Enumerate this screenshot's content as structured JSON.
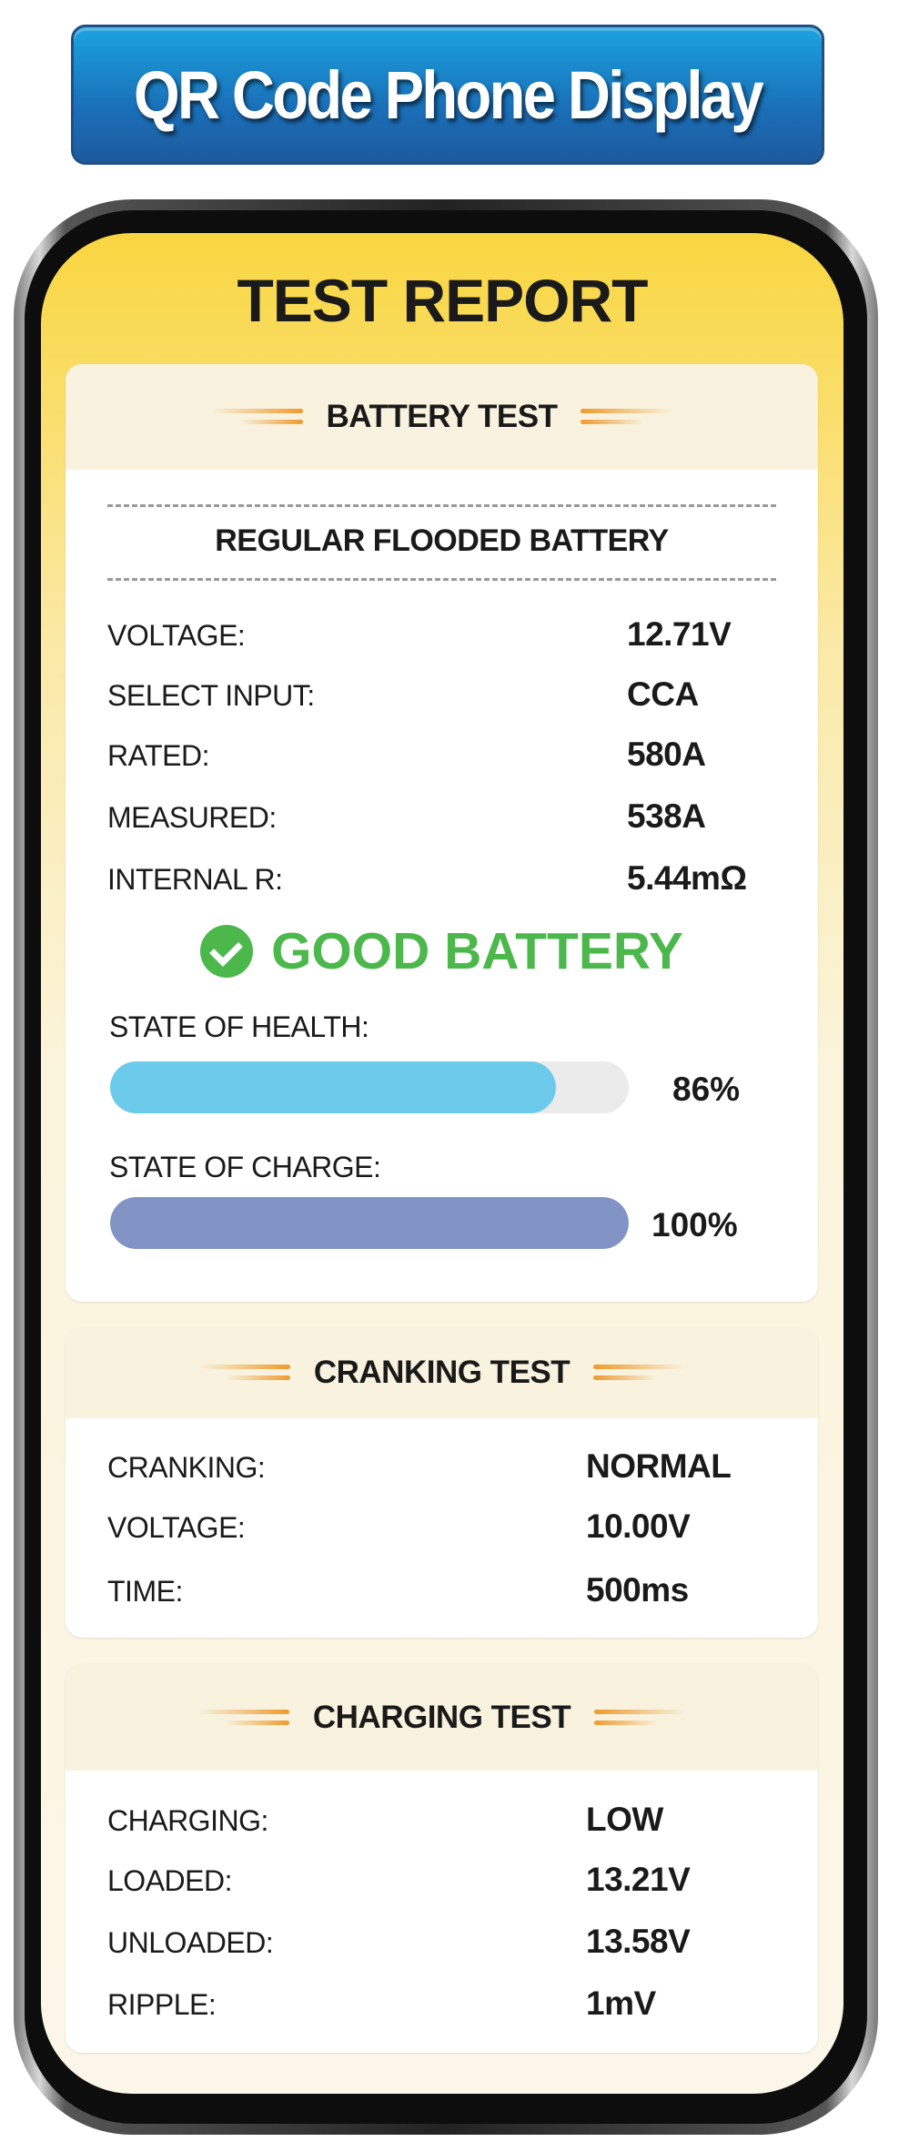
{
  "banner": {
    "title": "QR Code Phone Display"
  },
  "report": {
    "title": "TEST REPORT"
  },
  "battery_test": {
    "title": "BATTERY TEST",
    "battery_type": "REGULAR FLOODED BATTERY",
    "rows": [
      {
        "label": "VOLTAGE:",
        "value": "12.71V"
      },
      {
        "label": "SELECT INPUT:",
        "value": "CCA"
      },
      {
        "label": "RATED:",
        "value": "580A"
      },
      {
        "label": "MEASURED:",
        "value": "538A"
      },
      {
        "label": "INTERNAL R:",
        "value": "5.44mΩ"
      }
    ],
    "result": "GOOD BATTERY",
    "result_icon": "check-circle-icon",
    "result_color": "#4cb84c",
    "soh": {
      "label": "STATE OF HEALTH:",
      "percent": 86,
      "text": "86%",
      "color": "#6ccaeb"
    },
    "soc": {
      "label": "STATE OF CHARGE:",
      "percent": 100,
      "text": "100%",
      "color": "#8294c6"
    }
  },
  "cranking_test": {
    "title": "CRANKING TEST",
    "rows": [
      {
        "label": "CRANKING:",
        "value": "NORMAL"
      },
      {
        "label": "VOLTAGE:",
        "value": "10.00V"
      },
      {
        "label": "TIME:",
        "value": "500ms"
      }
    ]
  },
  "charging_test": {
    "title": "CHARGING TEST",
    "rows": [
      {
        "label": "CHARGING:",
        "value": "LOW"
      },
      {
        "label": "LOADED:",
        "value": "13.21V"
      },
      {
        "label": "UNLOADED:",
        "value": "13.58V"
      },
      {
        "label": "RIPPLE:",
        "value": "1mV"
      }
    ]
  }
}
